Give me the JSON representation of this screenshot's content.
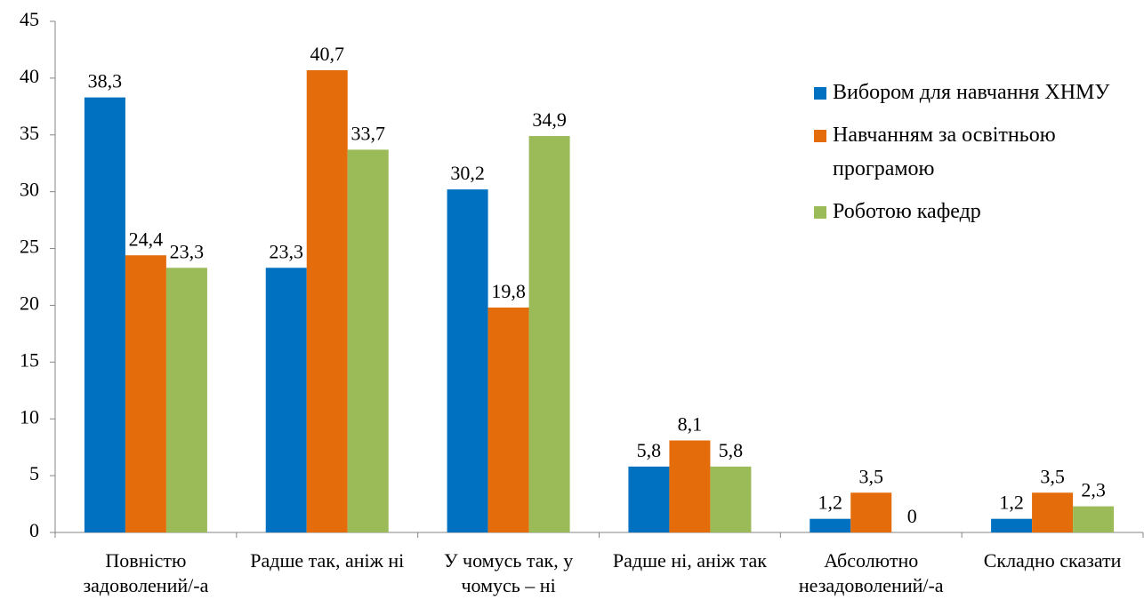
{
  "chart_data": {
    "type": "bar",
    "categories": [
      "Повністю задоволений/-а",
      "Радше так, аніж ні",
      "У чомусь так, у чомусь – ні",
      "Радше ні, аніж так",
      "Абсолютно незадоволений/-а",
      "Складно сказати"
    ],
    "series": [
      {
        "name": "Вибором для навчання ХНМУ",
        "color": "#0070c0",
        "values": [
          38.3,
          23.3,
          30.2,
          5.8,
          1.2,
          1.2
        ],
        "value_labels": [
          "38,3",
          "23,3",
          "30,2",
          "5,8",
          "1,2",
          "1,2"
        ]
      },
      {
        "name": "Навчанням за освітньою програмою",
        "color": "#e46c0a",
        "values": [
          24.4,
          40.7,
          19.8,
          8.1,
          3.5,
          3.5
        ],
        "value_labels": [
          "24,4",
          "40,7",
          "19,8",
          "8,1",
          "3,5",
          "3,5"
        ]
      },
      {
        "name": "Роботою кафедр",
        "color": "#9bbb59",
        "values": [
          23.3,
          33.7,
          34.9,
          5.8,
          0,
          2.3
        ],
        "value_labels": [
          "23,3",
          "33,7",
          "34,9",
          "5,8",
          "0",
          "2,3"
        ]
      }
    ],
    "ylim": [
      0,
      45
    ],
    "yticks": [
      0,
      5,
      10,
      15,
      20,
      25,
      30,
      35,
      40,
      45
    ],
    "grid": false,
    "legend": "right"
  }
}
